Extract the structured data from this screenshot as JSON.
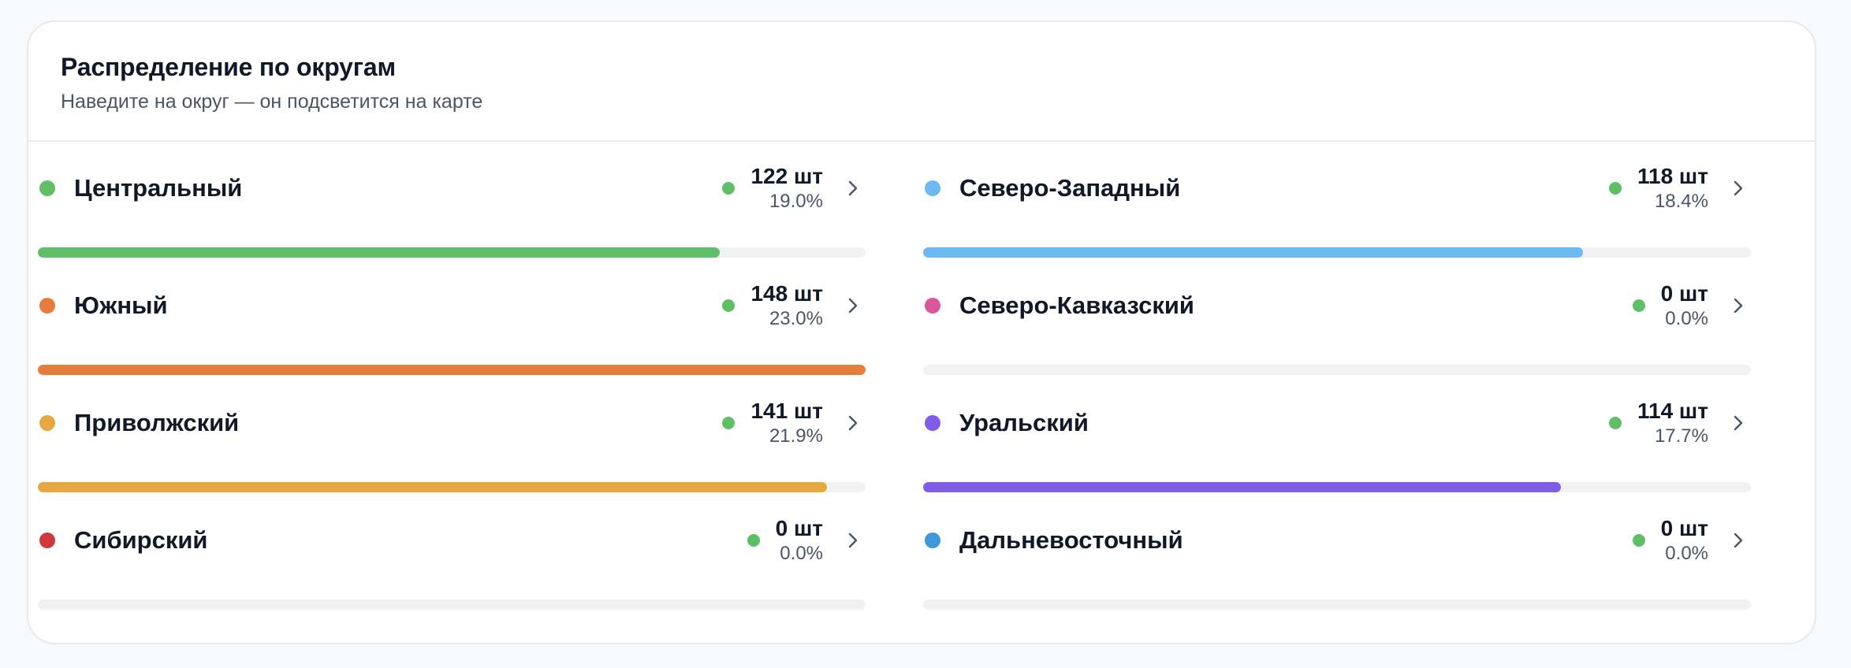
{
  "header": {
    "title": "Распределение по округам",
    "subtitle": "Наведите на округ — он подсветится на карте"
  },
  "status_color": "#5fbf66",
  "districts": [
    {
      "name": "Центральный",
      "count": "122 шт",
      "percent": "19.0%",
      "share": 0.824,
      "color": "#5fbf66",
      "icon": "chevron-right-icon"
    },
    {
      "name": "Северо-Западный",
      "count": "118 шт",
      "percent": "18.4%",
      "share": 0.797,
      "color": "#6cb8f0",
      "icon": "chevron-right-icon"
    },
    {
      "name": "Южный",
      "count": "148 шт",
      "percent": "23.0%",
      "share": 1.0,
      "color": "#e57e3c",
      "icon": "chevron-right-icon"
    },
    {
      "name": "Северо-Кавказский",
      "count": "0 шт",
      "percent": "0.0%",
      "share": 0,
      "color": "#d9579b",
      "icon": "chevron-right-icon"
    },
    {
      "name": "Приволжский",
      "count": "141 шт",
      "percent": "21.9%",
      "share": 0.953,
      "color": "#e8a640",
      "icon": "chevron-right-icon"
    },
    {
      "name": "Уральский",
      "count": "114 шт",
      "percent": "17.7%",
      "share": 0.77,
      "color": "#7f5de6",
      "icon": "chevron-right-icon"
    },
    {
      "name": "Сибирский",
      "count": "0 шт",
      "percent": "0.0%",
      "share": 0,
      "color": "#d0393c",
      "icon": "chevron-right-icon"
    },
    {
      "name": "Дальневосточный",
      "count": "0 шт",
      "percent": "0.0%",
      "share": 0,
      "color": "#3d97dc",
      "icon": "chevron-right-icon"
    }
  ]
}
